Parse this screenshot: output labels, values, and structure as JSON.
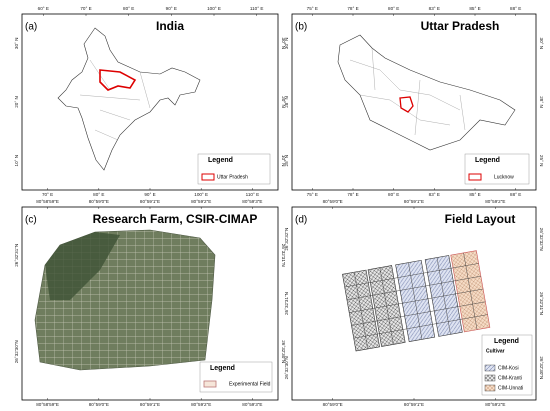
{
  "panels": [
    {
      "label": "(a)",
      "title": "India",
      "top_ticks": [
        "60° E",
        "70° E",
        "80° E",
        "90° E",
        "100° E",
        "110° E"
      ],
      "bottom_ticks": [
        "70° E",
        "80° E",
        "90° E",
        "100° E",
        "110° E"
      ],
      "left_ticks": [
        "30° N",
        "20° N",
        "10° N"
      ],
      "right_ticks": [
        "30° N",
        "20° N",
        "10° N"
      ],
      "legend": {
        "title": "Legend",
        "items": [
          "Uttar Pradesh"
        ]
      }
    },
    {
      "label": "(b)",
      "title": "Uttar Pradesh",
      "top_ticks": [
        "75° E",
        "78° E",
        "80° E",
        "83° E",
        "85° E",
        "88° E"
      ],
      "bottom_ticks": [
        "75° E",
        "78° E",
        "80° E",
        "83° E",
        "85° E",
        "88° E"
      ],
      "left_ticks": [
        "30° N",
        "28° N",
        "25° N"
      ],
      "right_ticks": [
        "30° N",
        "28° N",
        "25° N"
      ],
      "legend": {
        "title": "Legend",
        "items": [
          "Lucknow"
        ]
      }
    },
    {
      "label": "(c)",
      "title": "Research Farm, CSIR-CIMAP",
      "top_ticks": [
        "80°58'59\"E",
        "80°59'0\"E",
        "80°59'1\"E",
        "80°59'2\"E",
        "80°59'3\"E"
      ],
      "bottom_ticks": [
        "80°58'59\"E",
        "80°59'0\"E",
        "80°59'1\"E",
        "80°59'2\"E",
        "80°59'3\"E"
      ],
      "left_ticks": [
        "26°32'31\"N",
        "26°32'30\"N"
      ],
      "right_ticks": [
        "26°32'31\"N",
        "26°32'30\"N"
      ],
      "legend": {
        "title": "Legend",
        "items": [
          "Experimental Field"
        ]
      }
    },
    {
      "label": "(d)",
      "title": "Field Layout",
      "top_ticks": [
        "80°59'0\"E",
        "80°59'1\"E",
        "80°59'2\"E"
      ],
      "bottom_ticks": [
        "80°59'0\"E",
        "80°59'1\"E",
        "80°59'2\"E"
      ],
      "left_ticks": [
        "26°32'32\"N",
        "26°32'31\"N",
        "26°32'30\"N"
      ],
      "right_ticks": [
        "26°32'32\"N",
        "26°32'31\"N",
        "26°32'30\"N"
      ],
      "legend": {
        "title": "Legend",
        "subtitle": "Cultivar",
        "items": [
          "CIM-Kosi",
          "CIM-Kranti",
          "CIM-Unnati"
        ]
      }
    }
  ]
}
